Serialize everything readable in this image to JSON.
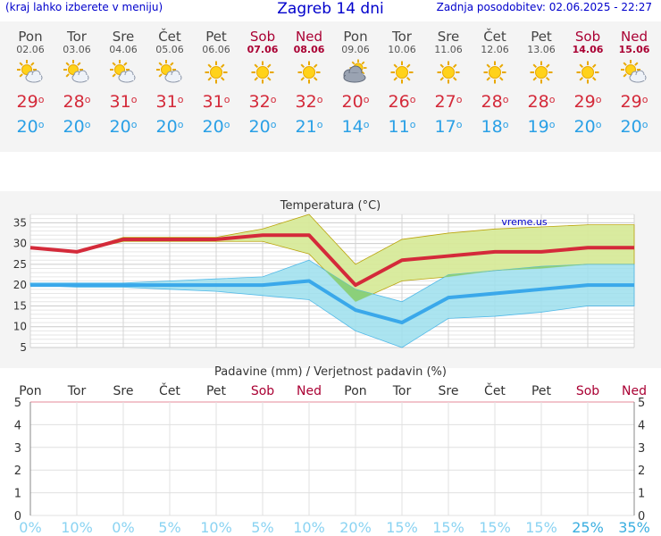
{
  "header": {
    "menu_hint": "(kraj lahko izberete v meniju)",
    "title": "Zagreb 14 dni",
    "updated": "Zadnja posodobitev: 02.06.2025 - 22:27"
  },
  "days": [
    {
      "name": "Pon",
      "date": "02.06",
      "weekend": false,
      "icon": "sun-cloud-icon",
      "max": "29",
      "min": "20"
    },
    {
      "name": "Tor",
      "date": "03.06",
      "weekend": false,
      "icon": "sun-cloud-icon",
      "max": "28",
      "min": "20"
    },
    {
      "name": "Sre",
      "date": "04.06",
      "weekend": false,
      "icon": "sun-cloud-icon",
      "max": "31",
      "min": "20"
    },
    {
      "name": "Čet",
      "date": "05.06",
      "weekend": false,
      "icon": "sun-cloud-icon",
      "max": "31",
      "min": "20"
    },
    {
      "name": "Pet",
      "date": "06.06",
      "weekend": false,
      "icon": "sun-icon",
      "max": "31",
      "min": "20"
    },
    {
      "name": "Sob",
      "date": "07.06",
      "weekend": true,
      "icon": "sun-icon",
      "max": "32",
      "min": "20"
    },
    {
      "name": "Ned",
      "date": "08.06",
      "weekend": true,
      "icon": "sun-icon",
      "max": "32",
      "min": "21"
    },
    {
      "name": "Pon",
      "date": "09.06",
      "weekend": false,
      "icon": "cloud-sun-icon",
      "max": "20",
      "min": "14"
    },
    {
      "name": "Tor",
      "date": "10.06",
      "weekend": false,
      "icon": "sun-icon",
      "max": "26",
      "min": "11"
    },
    {
      "name": "Sre",
      "date": "11.06",
      "weekend": false,
      "icon": "sun-icon",
      "max": "27",
      "min": "17"
    },
    {
      "name": "Čet",
      "date": "12.06",
      "weekend": false,
      "icon": "sun-icon",
      "max": "28",
      "min": "18"
    },
    {
      "name": "Pet",
      "date": "13.06",
      "weekend": false,
      "icon": "sun-icon",
      "max": "28",
      "min": "19"
    },
    {
      "name": "Sob",
      "date": "14.06",
      "weekend": true,
      "icon": "sun-icon",
      "max": "29",
      "min": "20"
    },
    {
      "name": "Ned",
      "date": "15.06",
      "weekend": true,
      "icon": "sun-cloud-icon",
      "max": "29",
      "min": "20"
    }
  ],
  "chart_data": [
    {
      "type": "line",
      "title": "Temperatura (°C)",
      "watermark": "vreme.us",
      "ylim": [
        5,
        37
      ],
      "yticks": [
        5,
        10,
        15,
        20,
        25,
        30,
        35
      ],
      "grid": true,
      "x_count": 14,
      "series": [
        {
          "values": [
            29,
            28,
            31,
            31,
            31,
            32,
            32,
            20,
            26,
            27,
            28,
            28,
            29,
            29
          ],
          "color": "#d42a3a"
        },
        {
          "values": [
            20,
            20,
            20,
            20,
            20,
            20,
            21,
            14,
            11,
            17,
            18,
            19,
            20,
            20
          ],
          "color": "#3aa8ea"
        }
      ],
      "max_band": {
        "upper": [
          29,
          28,
          31.5,
          31.5,
          31.5,
          33.5,
          37,
          25,
          31,
          32.5,
          33.5,
          34,
          34.5,
          34.5
        ],
        "lower": [
          29,
          28,
          30.5,
          30.5,
          30.5,
          30.5,
          27.5,
          16,
          21,
          22,
          23.5,
          24,
          25,
          25
        ],
        "color": "#d8ea9a"
      },
      "min_band": {
        "upper": [
          20.5,
          20.5,
          20.5,
          21,
          21.5,
          22,
          26,
          19,
          16,
          22.5,
          23.5,
          24.5,
          25,
          25
        ],
        "lower": [
          20,
          19.5,
          19.5,
          19,
          18.5,
          17.5,
          16.5,
          9,
          5,
          12,
          12.5,
          13.5,
          15,
          15
        ],
        "color": "#9de0ee"
      },
      "overlap_color": "#8bd07a"
    },
    {
      "type": "bar",
      "title": "Padavine (mm) / Verjetnost padavin (%)",
      "ylim": [
        0,
        5
      ],
      "yticks": [
        0,
        1,
        2,
        3,
        4,
        5
      ],
      "grid": true,
      "categories": [
        "Pon",
        "Tor",
        "Sre",
        "Čet",
        "Pet",
        "Sob",
        "Ned",
        "Pon",
        "Tor",
        "Sre",
        "Čet",
        "Pet",
        "Sob",
        "Ned"
      ],
      "weekend": [
        false,
        false,
        false,
        false,
        false,
        true,
        true,
        false,
        false,
        false,
        false,
        false,
        true,
        true
      ],
      "values": [
        0,
        0,
        0,
        0,
        0,
        0,
        0,
        0,
        0,
        0,
        0,
        0,
        0,
        0
      ],
      "probability": [
        "0%",
        "10%",
        "0%",
        "5%",
        "10%",
        "5%",
        "10%",
        "20%",
        "15%",
        "15%",
        "15%",
        "15%",
        "25%",
        "35%"
      ],
      "probability_strong": [
        false,
        false,
        false,
        false,
        false,
        false,
        false,
        false,
        false,
        false,
        false,
        false,
        true,
        true
      ]
    }
  ],
  "colors": {
    "accent": "#0000cc",
    "weekend": "#aa0033",
    "max": "#d42a3a",
    "min": "#2aa0e6"
  }
}
